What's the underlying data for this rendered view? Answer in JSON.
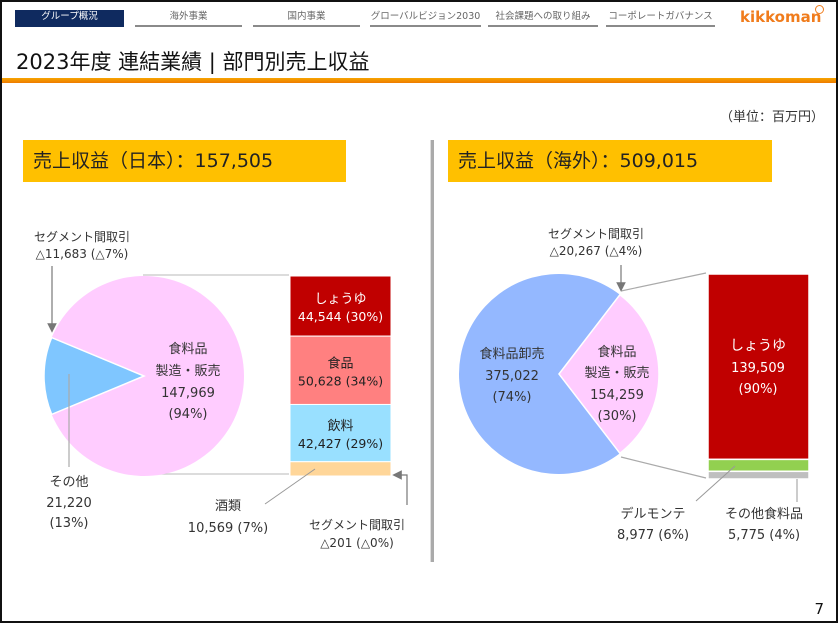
{
  "nav": {
    "tabs": [
      {
        "label": "グループ概況",
        "active": true
      },
      {
        "label": "海外事業",
        "active": false
      },
      {
        "label": "国内事業",
        "active": false
      },
      {
        "label": "グローバルビジョン2030",
        "active": false
      },
      {
        "label": "社会課題への取り組み",
        "active": false
      },
      {
        "label": "コーポレートガバナンス",
        "active": false
      }
    ],
    "logo": "kikkoman"
  },
  "title": "2023年度 連結業績 | 部門別売上収益",
  "unit": "（単位：百万円）",
  "page_number": "7",
  "colors": {
    "nav_active": "#0f2a5f",
    "accent_orange": "#f07c1c",
    "header_box": "#FFC000",
    "food_mfg": "#FFCCFF",
    "other_blue": "#7FC6FF",
    "wholesale_blue": "#94B8FF",
    "soy_red": "#C00000",
    "food_pink": "#FF8080",
    "beverage_cyan": "#99E0FF",
    "liquor_peach": "#FFD699",
    "delmonte_green": "#92D050",
    "other_food_gray": "#BFBFBF"
  },
  "chart_data": [
    {
      "type": "pie",
      "title": "売上収益（日本）：157,505",
      "header_label": "売上収益（日本）",
      "header_value": "：157,505",
      "total": 157505,
      "pie": {
        "slices": [
          {
            "name": "食料品 製造・販売",
            "label_lines": [
              "食料品",
              "製造・販売",
              "147,969",
              "(94%)"
            ],
            "value": 147969,
            "pct": 94
          },
          {
            "name": "その他",
            "label_lines": [
              "その他",
              "21,220",
              "(13%)"
            ],
            "value": 21220,
            "pct": 13
          }
        ],
        "elimination": {
          "label_lines": [
            "セグメント間取引",
            "△11,683 (△7%)"
          ],
          "value": -11683,
          "pct": -7
        }
      },
      "breakdown": {
        "type": "stacked-bar",
        "of": "食料品 製造・販売",
        "segments": [
          {
            "name": "しょうゆ",
            "value_text": "44,544 (30%)",
            "value": 44544,
            "pct": 30
          },
          {
            "name": "食品",
            "value_text": "50,628 (34%)",
            "value": 50628,
            "pct": 34
          },
          {
            "name": "飲料",
            "value_text": "42,427 (29%)",
            "value": 42427,
            "pct": 29
          },
          {
            "name": "酒類",
            "value_text": "10,569 (7%)",
            "value": 10569,
            "pct": 7
          }
        ],
        "elimination": {
          "label_lines": [
            "セグメント間取引",
            "△201 (△0%)"
          ],
          "value": -201,
          "pct": 0
        }
      }
    },
    {
      "type": "pie",
      "title": "売上収益（海外）：509,015",
      "header_label": "売上収益（海外）",
      "header_value": "：509,015",
      "total": 509015,
      "pie": {
        "slices": [
          {
            "name": "食料品卸売",
            "label_lines": [
              "食料品卸売",
              "375,022",
              "(74%)"
            ],
            "value": 375022,
            "pct": 74
          },
          {
            "name": "食料品 製造・販売",
            "label_lines": [
              "食料品",
              "製造・販売",
              "154,259",
              "(30%)"
            ],
            "value": 154259,
            "pct": 30
          }
        ],
        "elimination": {
          "label_lines": [
            "セグメント間取引",
            "△20,267 (△4%)"
          ],
          "value": -20267,
          "pct": -4
        }
      },
      "breakdown": {
        "type": "stacked-bar",
        "of": "食料品 製造・販売",
        "segments": [
          {
            "name": "しょうゆ",
            "label_lines": [
              "しょうゆ",
              "139,509",
              "(90%)"
            ],
            "value": 139509,
            "pct": 90
          },
          {
            "name": "デルモンテ",
            "label_lines": [
              "デルモンテ",
              "8,977 (6%)"
            ],
            "value": 8977,
            "pct": 6
          },
          {
            "name": "その他食料品",
            "label_lines": [
              "その他食料品",
              "5,775 (4%)"
            ],
            "value": 5775,
            "pct": 4
          }
        ]
      }
    }
  ]
}
